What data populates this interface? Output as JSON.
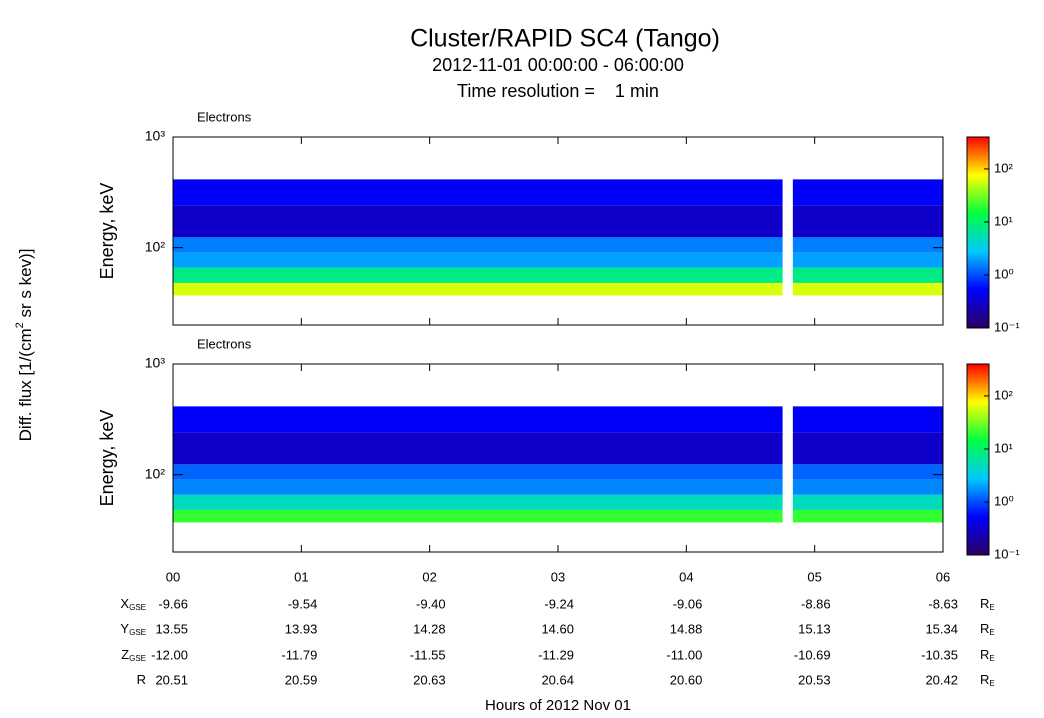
{
  "header": {
    "title": "Cluster/RAPID SC4 (Tango)",
    "subtitle": "2012-11-01 00:00:00 - 06:00:00",
    "resolution": "Time resolution =    1 min"
  },
  "colorbar_label": {
    "main": "Diff. flux [1/(cm",
    "sup": "2",
    "rest": " sr s kev)]"
  },
  "xlabel": "Hours of 2012 Nov 01",
  "chart_data": [
    {
      "type": "heatmap",
      "label": "Electrons",
      "ylabel": "Energy, keV",
      "xlim": [
        0,
        6
      ],
      "xticks": [
        {
          "value": 0,
          "label": "00"
        },
        {
          "value": 1,
          "label": "01"
        },
        {
          "value": 2,
          "label": "02"
        },
        {
          "value": 3,
          "label": "03"
        },
        {
          "value": 4,
          "label": "04"
        },
        {
          "value": 5,
          "label": "05"
        },
        {
          "value": 6,
          "label": "06"
        }
      ],
      "ylim": [
        20,
        1000
      ],
      "log_y": true,
      "yticks": [
        {
          "value": 100,
          "label": "10²"
        },
        {
          "value": 1000,
          "label": "10³"
        }
      ],
      "time_segments": [
        [
          0,
          4.75
        ],
        [
          4.83,
          6
        ]
      ],
      "energy_bins": [
        37,
        48,
        66,
        90,
        124,
        242,
        414
      ],
      "values": [
        [
          60,
          60
        ],
        [
          8,
          8
        ],
        [
          2,
          2
        ],
        [
          1.5,
          1.5
        ],
        [
          0.3,
          0.3
        ],
        [
          0.5,
          0.5
        ]
      ],
      "clim": [
        0.1,
        400
      ],
      "cticks": [
        {
          "value": 0.1,
          "label": "10⁻¹"
        },
        {
          "value": 1,
          "label": "10⁰"
        },
        {
          "value": 10,
          "label": "10¹"
        },
        {
          "value": 100,
          "label": "10²"
        }
      ],
      "colormap": [
        "#2a0060",
        "#0000ff",
        "#00c8ff",
        "#00ff40",
        "#ffff00",
        "#ff0000"
      ]
    },
    {
      "type": "heatmap",
      "label": "Electrons",
      "ylabel": "Energy, keV",
      "xlim": [
        0,
        6
      ],
      "xticks": [
        {
          "value": 0,
          "label": "00"
        },
        {
          "value": 1,
          "label": "01"
        },
        {
          "value": 2,
          "label": "02"
        },
        {
          "value": 3,
          "label": "03"
        },
        {
          "value": 4,
          "label": "04"
        },
        {
          "value": 5,
          "label": "05"
        },
        {
          "value": 6,
          "label": "06"
        }
      ],
      "ylim": [
        20,
        1000
      ],
      "log_y": true,
      "yticks": [
        {
          "value": 100,
          "label": "10²"
        },
        {
          "value": 1000,
          "label": "10³"
        }
      ],
      "time_segments": [
        [
          0,
          4.75
        ],
        [
          4.83,
          6
        ]
      ],
      "energy_bins": [
        37,
        48,
        66,
        90,
        124,
        242,
        414
      ],
      "values": [
        [
          20,
          20
        ],
        [
          5,
          5
        ],
        [
          1.6,
          1.6
        ],
        [
          1.2,
          1.2
        ],
        [
          0.3,
          0.3
        ],
        [
          0.5,
          0.5
        ]
      ],
      "clim": [
        0.1,
        400
      ],
      "cticks": [
        {
          "value": 0.1,
          "label": "10⁻¹"
        },
        {
          "value": 1,
          "label": "10⁰"
        },
        {
          "value": 10,
          "label": "10¹"
        },
        {
          "value": 100,
          "label": "10²"
        }
      ],
      "colormap": [
        "#2a0060",
        "#0000ff",
        "#00c8ff",
        "#00ff40",
        "#ffff00",
        "#ff0000"
      ]
    }
  ],
  "ephemeris": {
    "unit": {
      "main": "R",
      "sub": "E"
    },
    "rows": [
      {
        "label": {
          "main": "X",
          "sub": "GSE"
        },
        "values": [
          "-9.66",
          "-9.54",
          "-9.40",
          "-9.24",
          "-9.06",
          "-8.86",
          "-8.63"
        ]
      },
      {
        "label": {
          "main": "Y",
          "sub": "GSE"
        },
        "values": [
          "13.55",
          "13.93",
          "14.28",
          "14.60",
          "14.88",
          "15.13",
          "15.34"
        ]
      },
      {
        "label": {
          "main": "Z",
          "sub": "GSE"
        },
        "values": [
          "-12.00",
          "-11.79",
          "-11.55",
          "-11.29",
          "-11.00",
          "-10.69",
          "-10.35"
        ]
      },
      {
        "label": {
          "main": "R",
          "sub": ""
        },
        "values": [
          "20.51",
          "20.59",
          "20.63",
          "20.64",
          "20.60",
          "20.53",
          "20.42"
        ]
      }
    ]
  }
}
